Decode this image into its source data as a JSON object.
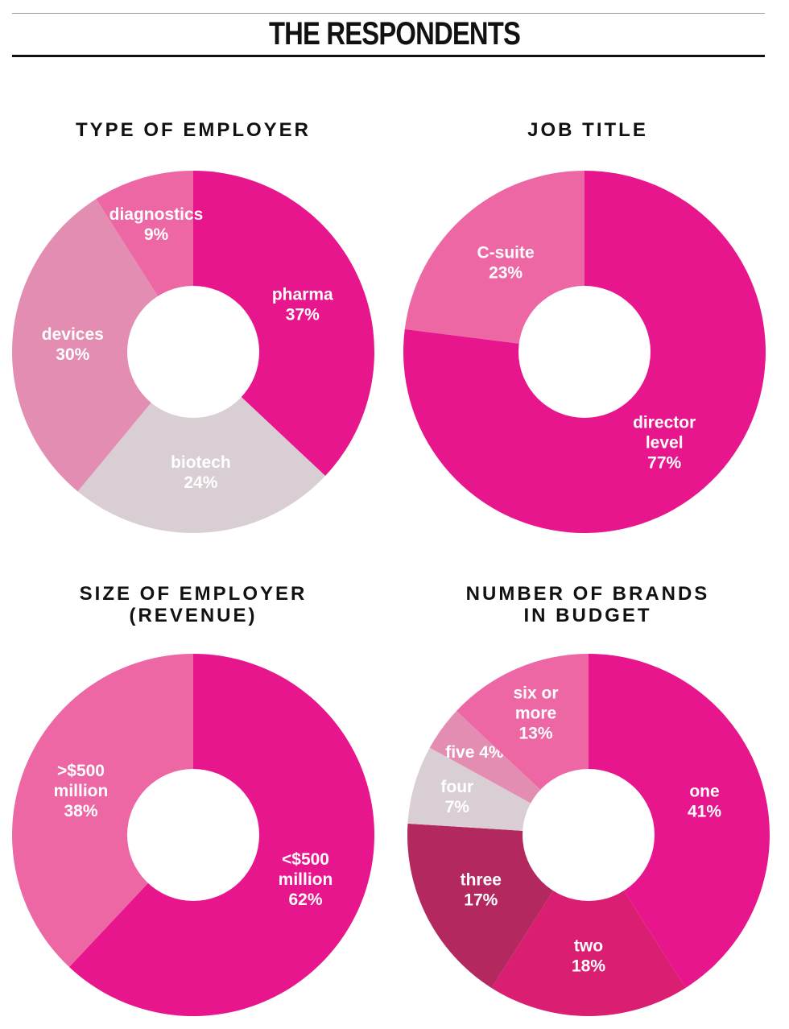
{
  "page": {
    "title": "THE RESPONDENTS"
  },
  "chart_data": [
    {
      "id": "employer-type",
      "type": "pie",
      "title_lines": [
        "TYPE OF EMPLOYER"
      ],
      "slices": [
        {
          "label_lines": [
            "pharma",
            "37%"
          ],
          "value": 37,
          "color": "#E8168C"
        },
        {
          "label_lines": [
            "biotech",
            "24%"
          ],
          "value": 24,
          "color": "#DACED5"
        },
        {
          "label_lines": [
            "devices",
            "30%"
          ],
          "value": 30,
          "color": "#E48DB2"
        },
        {
          "label_lines": [
            "diagnostics",
            "9%"
          ],
          "value": 9,
          "color": "#EC67A4"
        }
      ]
    },
    {
      "id": "job-title",
      "type": "pie",
      "title_lines": [
        "JOB TITLE"
      ],
      "slices": [
        {
          "label_lines": [
            "director",
            "level",
            "77%"
          ],
          "value": 77,
          "color": "#E8168C"
        },
        {
          "label_lines": [
            "C-suite",
            "23%"
          ],
          "value": 23,
          "color": "#EC67A4"
        }
      ]
    },
    {
      "id": "employer-size",
      "type": "pie",
      "title_lines": [
        "SIZE OF EMPLOYER",
        "(REVENUE)"
      ],
      "slices": [
        {
          "label_lines": [
            "<$500",
            "million",
            "62%"
          ],
          "value": 62,
          "color": "#E8168C"
        },
        {
          "label_lines": [
            ">$500",
            "million",
            "38%"
          ],
          "value": 38,
          "color": "#EC67A4"
        }
      ]
    },
    {
      "id": "brands-in-budget",
      "type": "pie",
      "title_lines": [
        "NUMBER OF BRANDS",
        "IN BUDGET"
      ],
      "slices": [
        {
          "label_lines": [
            "one",
            "41%"
          ],
          "value": 41,
          "color": "#E8168C"
        },
        {
          "label_lines": [
            "two",
            "18%"
          ],
          "value": 18,
          "color": "#DA1E72"
        },
        {
          "label_lines": [
            "three",
            "17%"
          ],
          "value": 17,
          "color": "#B2285F"
        },
        {
          "label_lines": [
            "four",
            "7%"
          ],
          "value": 7,
          "color": "#DACED5"
        },
        {
          "label_lines": [
            "five 4%"
          ],
          "value": 4,
          "color": "#E48DB2"
        },
        {
          "label_lines": [
            "six or",
            "more",
            "13%"
          ],
          "value": 13,
          "color": "#EC67A4"
        }
      ]
    }
  ]
}
